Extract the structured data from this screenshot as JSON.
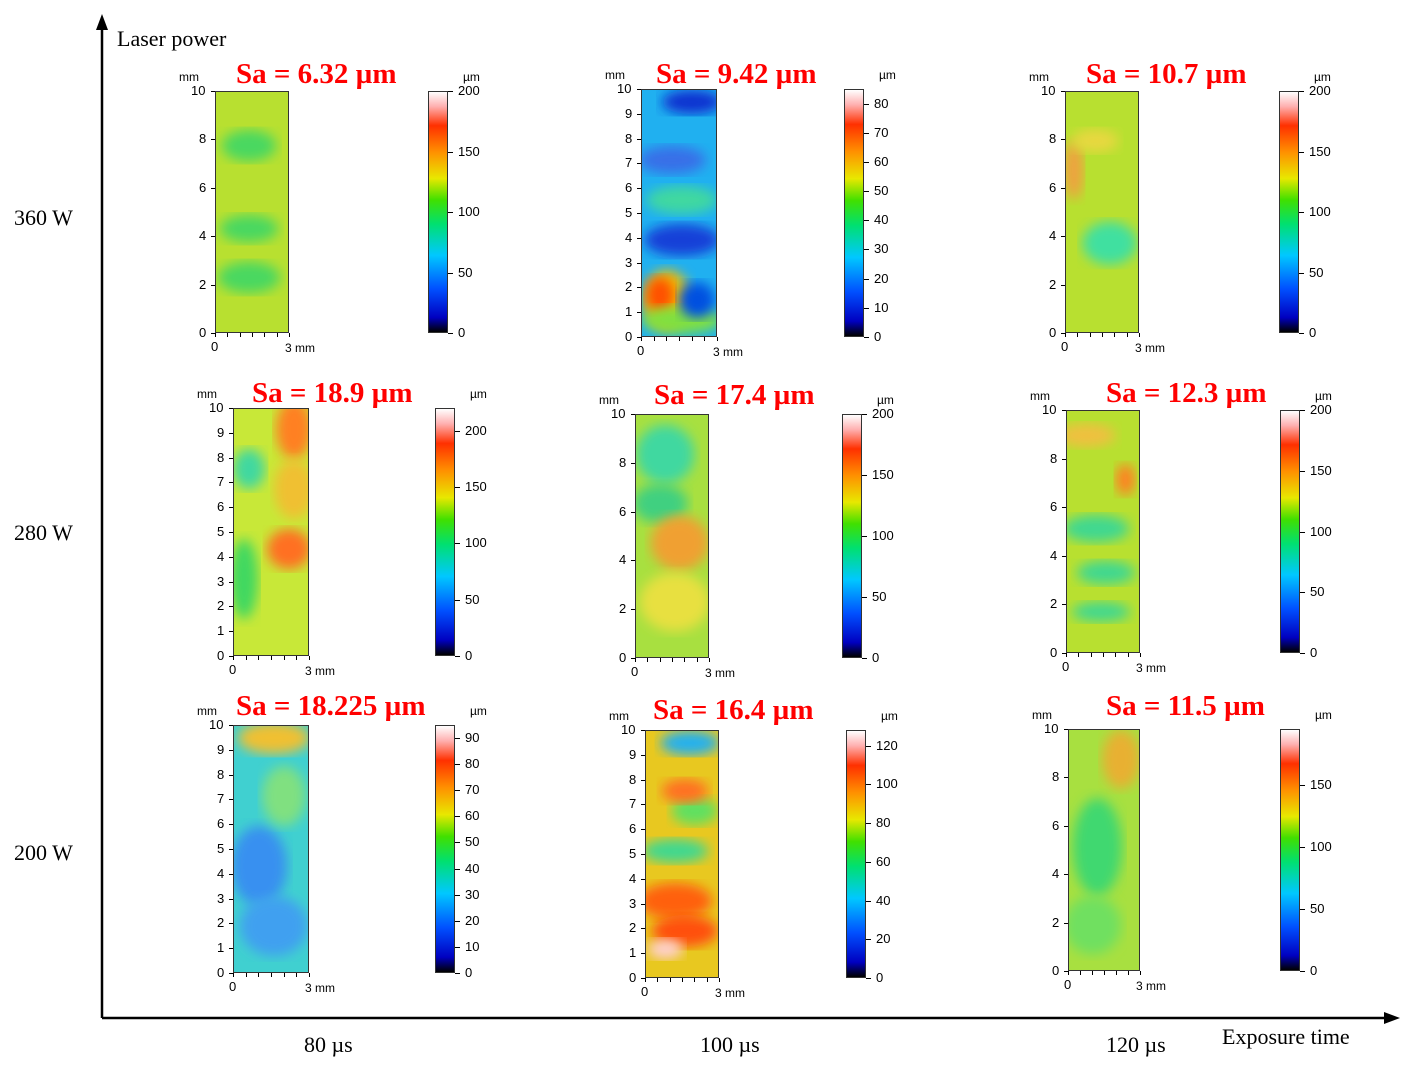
{
  "axes": {
    "y_title": "Laser power",
    "x_title": "Exposure time",
    "rows": [
      "360 W",
      "280 W",
      "200 W"
    ],
    "cols": [
      "80 µs",
      "100 µs",
      "120 µs"
    ]
  },
  "units": {
    "mm": "mm",
    "um": "µm",
    "x_end": "3 mm",
    "x_zero": "0"
  },
  "panels": [
    {
      "sa": "Sa = 6.32 µm",
      "y_ticks": [
        "10",
        "8",
        "6",
        "4",
        "2",
        "0"
      ],
      "cbar_ticks": [
        "200",
        "150",
        "100",
        "50",
        "0"
      ],
      "max": 200
    },
    {
      "sa": "Sa = 9.42 µm",
      "y_ticks": [
        "10",
        "9",
        "8",
        "7",
        "6",
        "5",
        "4",
        "3",
        "2",
        "1",
        "0"
      ],
      "cbar_ticks": [
        "80",
        "70",
        "60",
        "50",
        "40",
        "30",
        "20",
        "10",
        "0"
      ],
      "max": 85
    },
    {
      "sa": "Sa = 10.7 µm",
      "y_ticks": [
        "10",
        "8",
        "6",
        "4",
        "2",
        "0"
      ],
      "cbar_ticks": [
        "200",
        "150",
        "100",
        "50",
        "0"
      ],
      "max": 200
    },
    {
      "sa": "Sa = 18.9 µm",
      "y_ticks": [
        "10",
        "9",
        "8",
        "7",
        "6",
        "5",
        "4",
        "3",
        "2",
        "1",
        "0"
      ],
      "cbar_ticks": [
        "200",
        "150",
        "100",
        "50",
        "0"
      ],
      "max": 220
    },
    {
      "sa": "Sa = 17.4 µm",
      "y_ticks": [
        "10",
        "8",
        "6",
        "4",
        "2",
        "0"
      ],
      "cbar_ticks": [
        "200",
        "150",
        "100",
        "50",
        "0"
      ],
      "max": 200
    },
    {
      "sa": "Sa = 12.3 µm",
      "y_ticks": [
        "10",
        "8",
        "6",
        "4",
        "2",
        "0"
      ],
      "cbar_ticks": [
        "200",
        "150",
        "100",
        "50",
        "0"
      ],
      "max": 200
    },
    {
      "sa": "Sa = 18.225 µm",
      "y_ticks": [
        "10",
        "9",
        "8",
        "7",
        "6",
        "5",
        "4",
        "3",
        "2",
        "1",
        "0"
      ],
      "cbar_ticks": [
        "90",
        "80",
        "70",
        "60",
        "50",
        "40",
        "30",
        "20",
        "10",
        "0"
      ],
      "max": 95
    },
    {
      "sa": "Sa = 16.4 µm",
      "y_ticks": [
        "10",
        "9",
        "8",
        "7",
        "6",
        "5",
        "4",
        "3",
        "2",
        "1",
        "0"
      ],
      "cbar_ticks": [
        "120",
        "100",
        "80",
        "60",
        "40",
        "20",
        "0"
      ],
      "max": 128
    },
    {
      "sa": "Sa = 11.5 µm",
      "y_ticks": [
        "10",
        "8",
        "6",
        "4",
        "2",
        "0"
      ],
      "cbar_ticks": [
        "150",
        "100",
        "50",
        "0"
      ],
      "max": 195
    }
  ]
}
